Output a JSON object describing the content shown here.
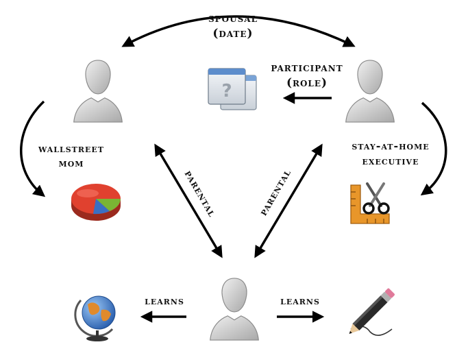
{
  "labels": {
    "spousal": "spousal",
    "spousal_date": "(date)",
    "participant": "participant",
    "participant_role": "(role)",
    "wallstreet": "wallstreet",
    "mom": "mom",
    "stay_at_home": "stay-at-home",
    "executive": "executive",
    "parental_left": "parental",
    "parental_right": "parental",
    "learns_left": "learns",
    "learns_right": "learns"
  },
  "icons": {
    "person_top_left": "person-icon",
    "person_top_right": "person-icon",
    "person_bottom": "person-icon",
    "unknown_window": "unknown-window-icon",
    "pie_chart": "pie-chart-icon",
    "ruler_scissors": "ruler-scissors-icon",
    "globe": "globe-icon",
    "pencil": "pencil-icon"
  },
  "colors": {
    "arrow": "#000000",
    "person_light": "#e6e6e6",
    "person_dark": "#9c9c9c",
    "pie_red": "#e0412f",
    "pie_blue": "#3a6fc4",
    "pie_green": "#7ab534",
    "ruler_orange": "#e8962a",
    "globe_blue": "#3f7fd0",
    "pencil_body": "#2a2a2a"
  }
}
